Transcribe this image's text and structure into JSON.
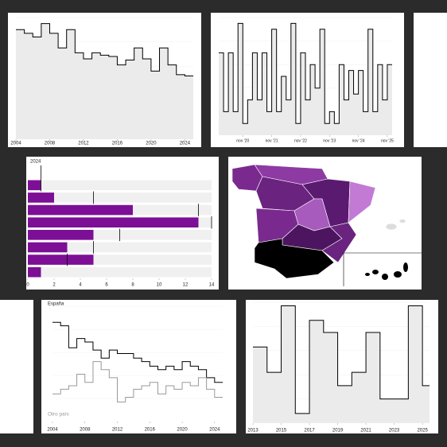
{
  "chart_data": [
    {
      "type": "area",
      "x": [
        2004,
        2005,
        2006,
        2007,
        2008,
        2009,
        2010,
        2011,
        2012,
        2013,
        2014,
        2015,
        2016,
        2017,
        2018,
        2019,
        2020,
        2021,
        2022,
        2023,
        2024
      ],
      "values": [
        90,
        87,
        84,
        95,
        87,
        75,
        90,
        71,
        66,
        71,
        69,
        68,
        61,
        65,
        75,
        66,
        56,
        75,
        61,
        53,
        52
      ],
      "xlim": [
        2004,
        2025
      ],
      "xticks": [
        2004,
        2008,
        2012,
        2016,
        2020,
        2024
      ],
      "ylim": [
        0,
        100
      ],
      "color": "#000000"
    },
    {
      "type": "area",
      "categories": [
        null,
        null,
        null,
        null,
        null,
        "nov '20",
        null,
        null,
        null,
        null,
        null,
        "nov '21",
        null,
        null,
        null,
        null,
        null,
        "nov '22",
        null,
        null,
        null,
        null,
        null,
        "nov '23",
        null,
        null,
        null,
        null,
        null,
        "nov '24",
        null,
        null,
        null,
        null,
        null,
        "nov '25"
      ],
      "values": [
        70,
        20,
        70,
        20,
        95,
        10,
        30,
        70,
        30,
        70,
        20,
        90,
        20,
        50,
        30,
        95,
        10,
        70,
        30,
        60,
        40,
        90,
        10,
        20,
        10,
        60,
        30,
        55,
        35,
        55,
        20,
        90,
        20,
        60,
        30,
        60
      ],
      "ylim": [
        0,
        100
      ],
      "color": "#000000"
    },
    {
      "type": "bar",
      "orientation": "horizontal",
      "title": "2024",
      "values": [
        1,
        2,
        8,
        13,
        5,
        3,
        5,
        1
      ],
      "color": "#7d0f96",
      "markers": [
        1,
        5,
        13,
        14,
        7,
        5,
        3,
        null
      ],
      "xlim": [
        0,
        14
      ],
      "xticks": [
        0,
        2,
        4,
        6,
        8,
        10,
        12,
        14
      ]
    },
    {
      "type": "line",
      "x": [
        2004,
        2005,
        2006,
        2007,
        2008,
        2009,
        2010,
        2011,
        2012,
        2013,
        2014,
        2015,
        2016,
        2017,
        2018,
        2019,
        2020,
        2021,
        2022,
        2023,
        2024
      ],
      "series": [
        {
          "name": "España",
          "color": "#000000",
          "values": [
            86,
            83,
            64,
            72,
            69,
            62,
            55,
            62,
            59,
            59,
            55,
            52,
            48,
            45,
            48,
            45,
            52,
            48,
            45,
            38,
            34
          ]
        },
        {
          "name": "Otro país",
          "color": "#999999",
          "values": [
            24,
            28,
            31,
            41,
            34,
            52,
            45,
            38,
            17,
            21,
            28,
            31,
            34,
            24,
            31,
            28,
            34,
            31,
            38,
            28,
            21
          ]
        }
      ],
      "xlim": [
        2004,
        2025
      ],
      "xticks": [
        2004,
        2008,
        2012,
        2016,
        2020,
        2024
      ],
      "ylim": [
        0,
        100
      ]
    },
    {
      "type": "area",
      "x": [
        2013,
        2014,
        2015,
        2016,
        2017,
        2018,
        2019,
        2020,
        2021,
        2022,
        2023,
        2024,
        2025
      ],
      "values": [
        63,
        42,
        97,
        8,
        85,
        75,
        31,
        42,
        75,
        20,
        20,
        97,
        31
      ],
      "xlim": [
        2013,
        2025.5
      ],
      "xticks": [
        2013,
        2015,
        2017,
        2019,
        2021,
        2023,
        2025
      ],
      "ylim": [
        0,
        100
      ],
      "color": "#000000"
    }
  ]
}
